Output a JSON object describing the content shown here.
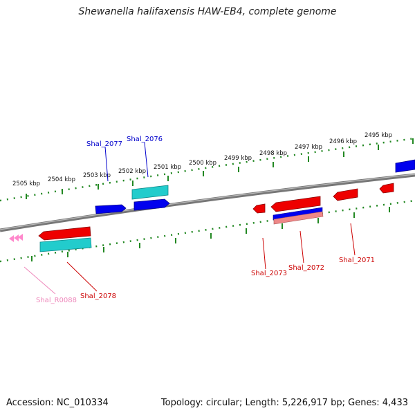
{
  "title": "Shewanella halifaxensis HAW-EB4, complete genome",
  "footer": {
    "accession": "Accession: NC_010334",
    "genome_info": "Topology: circular; Length: 5,226,917 bp; Genes: 4,433"
  },
  "kbp_labels": [
    "2505 kbp",
    "2504 kbp",
    "2503 kbp",
    "2502 kbp",
    "2501 kbp",
    "2500 kbp",
    "2499 kbp",
    "2498 kbp",
    "2497 kbp",
    "2496 kbp",
    "2495 kbp"
  ],
  "genes": [
    {
      "id": "Shal_2077",
      "color": "#0000cc"
    },
    {
      "id": "Shal_2076",
      "color": "#0000cc"
    },
    {
      "id": "Shal_2073",
      "color": "#cc0000"
    },
    {
      "id": "Shal_2072",
      "color": "#cc0000"
    },
    {
      "id": "Shal_2071",
      "color": "#cc0000"
    },
    {
      "id": "Shal_2078",
      "color": "#cc0000"
    },
    {
      "id": "Shal_R0088",
      "color": "#ee88bb"
    }
  ],
  "colors": {
    "backbone": "#888888",
    "tick": "#228822",
    "forward_cds": "#0000ee",
    "reverse_cds": "#ee0000",
    "tail": "#22cccc",
    "rna": "#ff88cc"
  }
}
